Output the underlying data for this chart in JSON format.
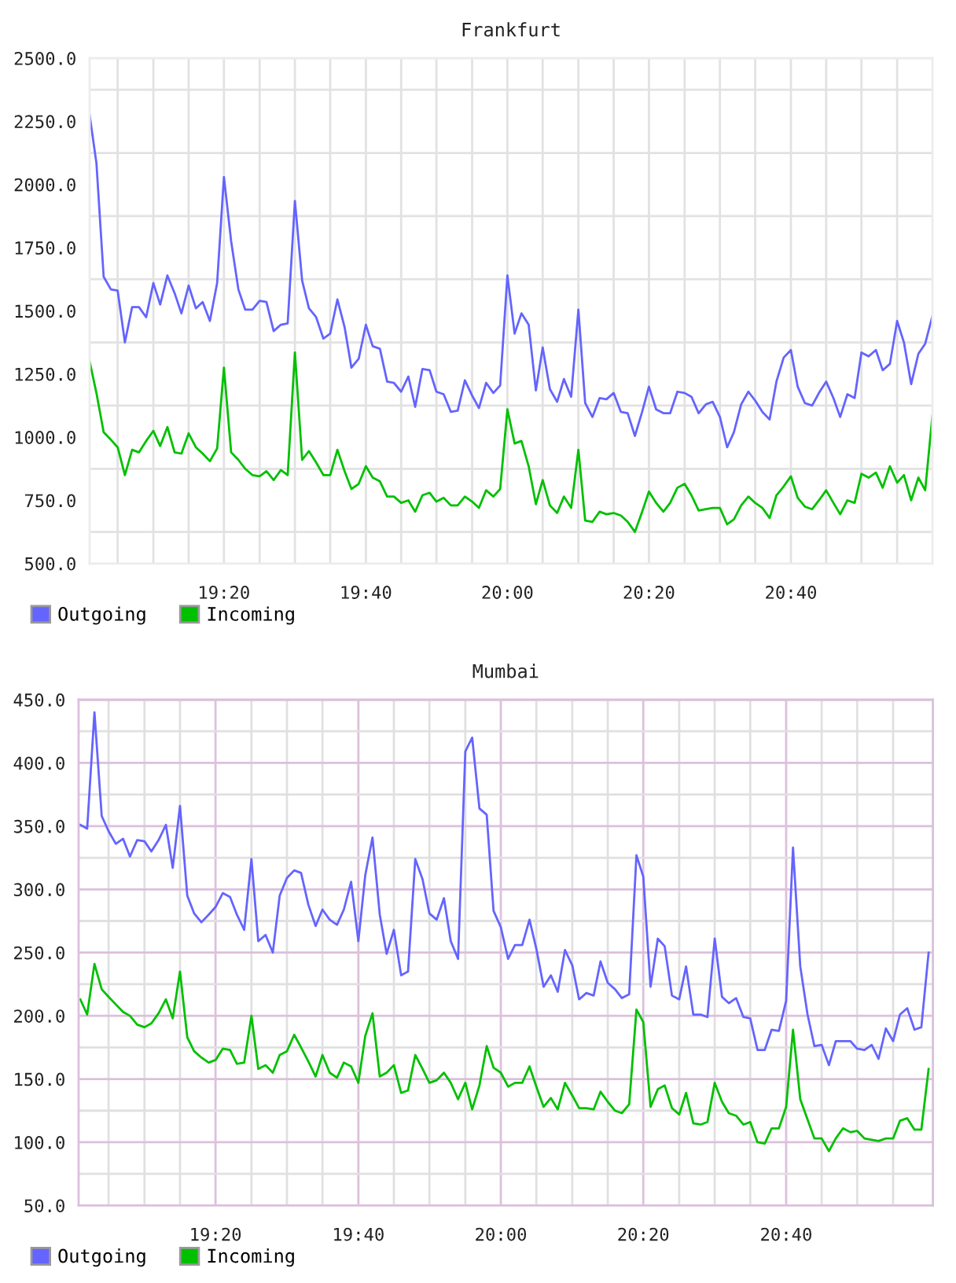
{
  "chart_data": [
    {
      "type": "line",
      "title": "Frankfurt",
      "grid": true,
      "legend": "bottom left",
      "x": [
        19.017,
        19.033,
        19.05,
        19.067,
        19.083,
        19.1,
        19.117,
        19.133,
        19.15,
        19.167,
        19.183,
        19.2,
        19.217,
        19.233,
        19.25,
        19.267,
        19.283,
        19.3,
        19.317,
        19.333,
        19.35,
        19.367,
        19.383,
        19.4,
        19.417,
        19.433,
        19.45,
        19.467,
        19.483,
        19.5,
        19.517,
        19.533,
        19.55,
        19.567,
        19.583,
        19.6,
        19.617,
        19.633,
        19.65,
        19.667,
        19.683,
        19.7,
        19.717,
        19.733,
        19.75,
        19.767,
        19.783,
        19.8,
        19.817,
        19.833,
        19.85,
        19.867,
        19.883,
        19.9,
        19.917,
        19.933,
        19.95,
        19.967,
        19.983,
        20.0,
        20.017,
        20.033,
        20.05,
        20.067,
        20.083,
        20.1,
        20.117,
        20.133,
        20.15,
        20.167,
        20.183,
        20.2,
        20.217,
        20.233,
        20.25,
        20.267,
        20.283,
        20.3,
        20.317,
        20.333,
        20.35,
        20.367,
        20.383,
        20.4,
        20.417,
        20.433,
        20.45,
        20.467,
        20.483,
        20.5,
        20.517,
        20.533,
        20.55,
        20.567,
        20.583,
        20.6,
        20.617,
        20.633,
        20.65,
        20.667,
        20.683,
        20.7,
        20.717,
        20.733,
        20.75,
        20.767,
        20.783,
        20.8,
        20.817,
        20.833,
        20.85,
        20.867,
        20.883,
        20.9,
        20.917,
        20.933,
        20.95,
        20.967,
        20.983,
        21.0
      ],
      "xlim": [
        19.017,
        21.0
      ],
      "xticks": [
        {
          "value": 19.083,
          "label": null
        },
        {
          "value": 19.167,
          "label": null
        },
        {
          "value": 19.25,
          "label": null
        },
        {
          "value": 19.333,
          "label": "19:20"
        },
        {
          "value": 19.417,
          "label": null
        },
        {
          "value": 19.5,
          "label": null
        },
        {
          "value": 19.583,
          "label": null
        },
        {
          "value": 19.667,
          "label": "19:40"
        },
        {
          "value": 19.75,
          "label": null
        },
        {
          "value": 19.833,
          "label": null
        },
        {
          "value": 19.917,
          "label": null
        },
        {
          "value": 20.0,
          "label": "20:00"
        },
        {
          "value": 20.083,
          "label": null
        },
        {
          "value": 20.167,
          "label": null
        },
        {
          "value": 20.25,
          "label": null
        },
        {
          "value": 20.333,
          "label": "20:20"
        },
        {
          "value": 20.417,
          "label": null
        },
        {
          "value": 20.5,
          "label": null
        },
        {
          "value": 20.583,
          "label": null
        },
        {
          "value": 20.667,
          "label": "20:40"
        },
        {
          "value": 20.75,
          "label": null
        },
        {
          "value": 20.833,
          "label": null
        },
        {
          "value": 20.917,
          "label": null
        }
      ],
      "ylim": [
        500,
        2500
      ],
      "yticks": [
        {
          "value": 500,
          "label": "500.0"
        },
        {
          "value": 625,
          "label": null
        },
        {
          "value": 750,
          "label": "750.0"
        },
        {
          "value": 875,
          "label": null
        },
        {
          "value": 1000,
          "label": "1000.0"
        },
        {
          "value": 1125,
          "label": null
        },
        {
          "value": 1250,
          "label": "1250.0"
        },
        {
          "value": 1375,
          "label": null
        },
        {
          "value": 1500,
          "label": "1500.0"
        },
        {
          "value": 1625,
          "label": null
        },
        {
          "value": 1750,
          "label": "1750.0"
        },
        {
          "value": 1875,
          "label": null
        },
        {
          "value": 2000,
          "label": "2000.0"
        },
        {
          "value": 2125,
          "label": null
        },
        {
          "value": 2250,
          "label": "2250.0"
        },
        {
          "value": 2375,
          "label": null
        },
        {
          "value": 2500,
          "label": "2500.0"
        }
      ],
      "series": [
        {
          "name": "Outgoing",
          "color": "#6464ff",
          "values": [
            2275,
            2085,
            1635,
            1585,
            1580,
            1375,
            1515,
            1515,
            1475,
            1610,
            1525,
            1640,
            1570,
            1490,
            1600,
            1510,
            1535,
            1460,
            1610,
            2030,
            1775,
            1585,
            1505,
            1505,
            1540,
            1535,
            1420,
            1445,
            1450,
            1935,
            1620,
            1510,
            1475,
            1390,
            1410,
            1545,
            1435,
            1275,
            1310,
            1445,
            1360,
            1350,
            1220,
            1215,
            1180,
            1240,
            1120,
            1270,
            1265,
            1180,
            1170,
            1100,
            1105,
            1225,
            1165,
            1115,
            1215,
            1175,
            1205,
            1640,
            1410,
            1490,
            1445,
            1185,
            1355,
            1190,
            1140,
            1230,
            1160,
            1505,
            1135,
            1080,
            1155,
            1150,
            1175,
            1100,
            1095,
            1005,
            1100,
            1200,
            1110,
            1095,
            1095,
            1180,
            1175,
            1160,
            1095,
            1130,
            1140,
            1080,
            960,
            1020,
            1130,
            1180,
            1145,
            1100,
            1070,
            1220,
            1315,
            1345,
            1200,
            1135,
            1125,
            1175,
            1220,
            1155,
            1080,
            1170,
            1155,
            1335,
            1320,
            1345,
            1265,
            1290,
            1460,
            1375,
            1210,
            1330,
            1370,
            1480
          ]
        },
        {
          "name": "Incoming",
          "color": "#00c000",
          "values": [
            1300,
            1175,
            1020,
            990,
            960,
            850,
            950,
            940,
            985,
            1025,
            965,
            1040,
            940,
            935,
            1015,
            960,
            935,
            905,
            955,
            1275,
            940,
            910,
            875,
            850,
            845,
            865,
            830,
            870,
            850,
            1335,
            910,
            945,
            900,
            850,
            850,
            950,
            865,
            795,
            815,
            885,
            840,
            825,
            765,
            765,
            740,
            750,
            705,
            770,
            780,
            745,
            760,
            730,
            730,
            765,
            745,
            720,
            790,
            765,
            795,
            1110,
            975,
            985,
            885,
            735,
            830,
            730,
            700,
            765,
            720,
            950,
            670,
            665,
            705,
            695,
            700,
            690,
            665,
            625,
            705,
            785,
            740,
            705,
            740,
            800,
            815,
            770,
            710,
            715,
            720,
            720,
            655,
            675,
            730,
            765,
            740,
            720,
            680,
            770,
            805,
            845,
            760,
            725,
            715,
            750,
            790,
            740,
            695,
            750,
            740,
            855,
            840,
            860,
            800,
            885,
            820,
            850,
            750,
            840,
            790,
            1085
          ]
        }
      ]
    },
    {
      "type": "line",
      "title": "Mumbai",
      "grid": true,
      "legend": "bottom left",
      "x": [
        19.017,
        19.033,
        19.05,
        19.067,
        19.083,
        19.1,
        19.117,
        19.133,
        19.15,
        19.167,
        19.183,
        19.2,
        19.217,
        19.233,
        19.25,
        19.267,
        19.283,
        19.3,
        19.317,
        19.333,
        19.35,
        19.367,
        19.383,
        19.4,
        19.417,
        19.433,
        19.45,
        19.467,
        19.483,
        19.5,
        19.517,
        19.533,
        19.55,
        19.567,
        19.583,
        19.6,
        19.617,
        19.633,
        19.65,
        19.667,
        19.683,
        19.7,
        19.717,
        19.733,
        19.75,
        19.767,
        19.783,
        19.8,
        19.817,
        19.833,
        19.85,
        19.867,
        19.883,
        19.9,
        19.917,
        19.933,
        19.95,
        19.967,
        19.983,
        20.0,
        20.017,
        20.033,
        20.05,
        20.067,
        20.083,
        20.1,
        20.117,
        20.133,
        20.15,
        20.167,
        20.183,
        20.2,
        20.217,
        20.233,
        20.25,
        20.267,
        20.283,
        20.3,
        20.317,
        20.333,
        20.35,
        20.367,
        20.383,
        20.4,
        20.417,
        20.433,
        20.45,
        20.467,
        20.483,
        20.5,
        20.517,
        20.533,
        20.55,
        20.567,
        20.583,
        20.6,
        20.617,
        20.633,
        20.65,
        20.667,
        20.683,
        20.7,
        20.717,
        20.733,
        20.75,
        20.767,
        20.783,
        20.8,
        20.817,
        20.833,
        20.85,
        20.867,
        20.883,
        20.9,
        20.917,
        20.933,
        20.95,
        20.967,
        20.983,
        21.0
      ],
      "xlim": [
        19.013,
        21.01
      ],
      "xticks": [
        {
          "value": 19.083,
          "label": null
        },
        {
          "value": 19.167,
          "label": null
        },
        {
          "value": 19.25,
          "label": null
        },
        {
          "value": 19.333,
          "label": "19:20"
        },
        {
          "value": 19.417,
          "label": null
        },
        {
          "value": 19.5,
          "label": null
        },
        {
          "value": 19.583,
          "label": null
        },
        {
          "value": 19.667,
          "label": "19:40"
        },
        {
          "value": 19.75,
          "label": null
        },
        {
          "value": 19.833,
          "label": null
        },
        {
          "value": 19.917,
          "label": null
        },
        {
          "value": 20.0,
          "label": "20:00"
        },
        {
          "value": 20.083,
          "label": null
        },
        {
          "value": 20.167,
          "label": null
        },
        {
          "value": 20.25,
          "label": null
        },
        {
          "value": 20.333,
          "label": "20:20"
        },
        {
          "value": 20.417,
          "label": null
        },
        {
          "value": 20.5,
          "label": null
        },
        {
          "value": 20.583,
          "label": null
        },
        {
          "value": 20.667,
          "label": "20:40"
        },
        {
          "value": 20.75,
          "label": null
        },
        {
          "value": 20.833,
          "label": null
        },
        {
          "value": 20.917,
          "label": null
        }
      ],
      "ylim": [
        50,
        450
      ],
      "yticks": [
        {
          "value": 50,
          "label": "50.0"
        },
        {
          "value": 75,
          "label": null
        },
        {
          "value": 100,
          "label": "100.0"
        },
        {
          "value": 125,
          "label": null
        },
        {
          "value": 150,
          "label": "150.0"
        },
        {
          "value": 175,
          "label": null
        },
        {
          "value": 200,
          "label": "200.0"
        },
        {
          "value": 225,
          "label": null
        },
        {
          "value": 250,
          "label": "250.0"
        },
        {
          "value": 275,
          "label": null
        },
        {
          "value": 300,
          "label": "300.0"
        },
        {
          "value": 325,
          "label": null
        },
        {
          "value": 350,
          "label": "350.0"
        },
        {
          "value": 375,
          "label": null
        },
        {
          "value": 400,
          "label": "400.0"
        },
        {
          "value": 425,
          "label": null
        },
        {
          "value": 450,
          "label": "450.0"
        }
      ],
      "series": [
        {
          "name": "Outgoing",
          "color": "#6464ff",
          "values": [
            351,
            348,
            440,
            358,
            346,
            336,
            340,
            326,
            339,
            338,
            330,
            339,
            351,
            317,
            366,
            295,
            281,
            274,
            280,
            286,
            297,
            294,
            280,
            268,
            324,
            259,
            264,
            250,
            295,
            309,
            315,
            313,
            288,
            271,
            284,
            276,
            272,
            284,
            306,
            259,
            311,
            341,
            280,
            249,
            268,
            232,
            235,
            324,
            308,
            281,
            276,
            293,
            259,
            245,
            409,
            420,
            364,
            359,
            283,
            270,
            245,
            256,
            256,
            276,
            253,
            223,
            232,
            219,
            252,
            240,
            213,
            218,
            216,
            243,
            226,
            221,
            214,
            217,
            327,
            310,
            223,
            261,
            255,
            216,
            213,
            239,
            201,
            201,
            199,
            261,
            215,
            210,
            214,
            199,
            198,
            173,
            173,
            189,
            188,
            212,
            333,
            239,
            201,
            176,
            177,
            161,
            180,
            180,
            180,
            174,
            173,
            177,
            166,
            190,
            180,
            201,
            206,
            189,
            191,
            250
          ]
        },
        {
          "name": "Incoming",
          "color": "#00c000",
          "values": [
            213,
            201,
            241,
            221,
            215,
            209,
            203,
            200,
            193,
            191,
            194,
            202,
            213,
            198,
            235,
            183,
            172,
            167,
            163,
            165,
            174,
            173,
            162,
            163,
            200,
            158,
            161,
            155,
            169,
            172,
            185,
            175,
            164,
            152,
            169,
            155,
            151,
            163,
            160,
            147,
            184,
            202,
            152,
            155,
            161,
            139,
            141,
            169,
            158,
            147,
            149,
            155,
            147,
            134,
            147,
            126,
            145,
            176,
            159,
            155,
            144,
            147,
            147,
            160,
            144,
            128,
            135,
            126,
            147,
            137,
            127,
            127,
            126,
            140,
            132,
            125,
            123,
            130,
            205,
            195,
            128,
            142,
            145,
            127,
            122,
            139,
            115,
            114,
            116,
            147,
            132,
            123,
            121,
            114,
            116,
            100,
            99,
            111,
            111,
            128,
            189,
            134,
            118,
            103,
            103,
            93,
            103,
            111,
            108,
            109,
            103,
            102,
            101,
            103,
            103,
            117,
            119,
            110,
            110,
            158
          ]
        }
      ]
    }
  ]
}
